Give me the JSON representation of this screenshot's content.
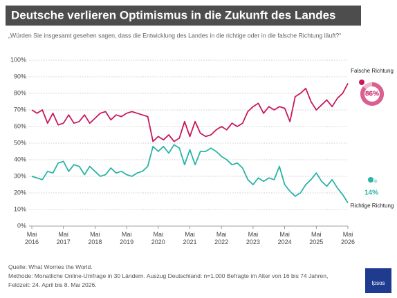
{
  "chart_data": {
    "type": "line",
    "title": "Deutsche verlieren Optimismus in die Zukunft des Landes",
    "subtitle": "„Würden Sie insgesamt gesehen sagen, dass die Entwicklung des Landes in die richtige oder in die falsche Richtung läuft?“",
    "x": [
      "2016-05",
      "2016-07",
      "2016-09",
      "2016-11",
      "2017-01",
      "2017-03",
      "2017-05",
      "2017-07",
      "2017-09",
      "2017-11",
      "2018-01",
      "2018-03",
      "2018-05",
      "2018-07",
      "2018-09",
      "2018-11",
      "2019-01",
      "2019-03",
      "2019-05",
      "2019-07",
      "2019-09",
      "2019-11",
      "2020-01",
      "2020-03",
      "2020-05",
      "2020-07",
      "2020-09",
      "2020-11",
      "2021-01",
      "2021-03",
      "2021-05",
      "2021-07",
      "2021-09",
      "2021-11",
      "2022-01",
      "2022-03",
      "2022-05",
      "2022-07",
      "2022-09",
      "2022-11",
      "2023-01",
      "2023-03",
      "2023-05",
      "2023-07",
      "2023-09",
      "2023-11",
      "2024-01",
      "2024-03",
      "2024-05",
      "2024-07",
      "2024-09",
      "2024-11",
      "2025-01",
      "2025-03",
      "2025-05",
      "2025-07",
      "2025-09",
      "2025-11",
      "2026-01",
      "2026-03",
      "2026-05"
    ],
    "series": [
      {
        "name": "Falsche Richtung",
        "color": "#c8175d",
        "values": [
          70,
          68,
          70,
          62,
          68,
          61,
          62,
          67,
          62,
          63,
          67,
          62,
          65,
          68,
          69,
          64,
          67,
          66,
          68,
          69,
          68,
          67,
          66,
          51,
          54,
          52,
          55,
          51,
          53,
          63,
          54,
          63,
          56,
          54,
          55,
          58,
          60,
          58,
          62,
          60,
          62,
          69,
          72,
          74,
          68,
          72,
          70,
          72,
          71,
          63,
          78,
          80,
          83,
          75,
          70,
          73,
          76,
          72,
          77,
          80,
          86
        ],
        "value_labels": [
          null,
          null,
          null,
          null,
          null,
          null,
          null,
          null,
          null,
          null,
          null,
          null,
          null,
          null,
          null,
          null,
          null,
          null,
          null,
          null,
          null,
          null,
          null,
          null,
          null,
          null,
          null,
          null,
          null,
          null,
          null,
          null,
          null,
          null,
          null,
          null,
          null,
          null,
          null,
          null,
          null,
          null,
          null,
          null,
          null,
          null,
          null,
          null,
          null,
          null,
          null,
          null,
          null,
          null,
          null,
          null,
          null,
          null,
          null,
          null,
          "86%"
        ]
      },
      {
        "name": "Richtige Richtung",
        "color": "#2ab3a6",
        "values": [
          30,
          29,
          28,
          33,
          32,
          38,
          39,
          33,
          37,
          36,
          31,
          36,
          33,
          30,
          31,
          35,
          32,
          33,
          31,
          30,
          32,
          33,
          36,
          48,
          45,
          48,
          44,
          49,
          47,
          37,
          46,
          37,
          45,
          45,
          47,
          45,
          42,
          40,
          37,
          38,
          35,
          28,
          25,
          29,
          27,
          29,
          28,
          36,
          25,
          21,
          18,
          20,
          25,
          28,
          32,
          27,
          24,
          28,
          23,
          19,
          14
        ],
        "value_labels": [
          null,
          null,
          null,
          null,
          null,
          null,
          null,
          null,
          null,
          null,
          null,
          null,
          null,
          null,
          null,
          null,
          null,
          null,
          null,
          null,
          null,
          null,
          null,
          null,
          null,
          null,
          null,
          null,
          null,
          null,
          null,
          null,
          null,
          null,
          null,
          null,
          null,
          null,
          null,
          null,
          null,
          null,
          null,
          null,
          null,
          null,
          null,
          null,
          null,
          null,
          null,
          null,
          null,
          null,
          null,
          null,
          null,
          null,
          null,
          null,
          "14%"
        ]
      }
    ],
    "xlim": [
      "2016-05",
      "2026-05"
    ],
    "xticks": [
      {
        "value": "2016-05",
        "label": "Mai 2016"
      },
      {
        "value": "2017-05",
        "label": "Mai 2017"
      },
      {
        "value": "2018-05",
        "label": "Mai 2018"
      },
      {
        "value": "2019-05",
        "label": "Mai 2019"
      },
      {
        "value": "2020-05",
        "label": "Mai 2020"
      },
      {
        "value": "2021-05",
        "label": "Mai 2021"
      },
      {
        "value": "2022-05",
        "label": "Mai 2022"
      },
      {
        "value": "2023-05",
        "label": "Mai 2023"
      },
      {
        "value": "2024-05",
        "label": "Mai 2024"
      },
      {
        "value": "2025-05",
        "label": "Mai 2025"
      },
      {
        "value": "2026-05",
        "label": "Mai 2026"
      }
    ],
    "ylim": [
      0,
      100
    ],
    "yticks": [
      {
        "value": 0,
        "label": "0%"
      },
      {
        "value": 10,
        "label": "10%"
      },
      {
        "value": 20,
        "label": "20%"
      },
      {
        "value": 30,
        "label": "30%"
      },
      {
        "value": 40,
        "label": "40%"
      },
      {
        "value": 50,
        "label": "50%"
      },
      {
        "value": 60,
        "label": "60%"
      },
      {
        "value": 70,
        "label": "70%"
      },
      {
        "value": 80,
        "label": "80%"
      },
      {
        "value": 90,
        "label": "90%"
      },
      {
        "value": 100,
        "label": "100%"
      }
    ],
    "grid": true,
    "source": [
      "Quelle: What Worries the World.",
      "Methode: Monatliche Online-Umfrage in 30 Ländern. Auszug Deutschland: n=1.000 Befragte im Alter von 16 bis 74 Jahren,",
      "Feldzeit: 24. April bis 8. Mai 2026."
    ],
    "logo": "Ipsos"
  }
}
